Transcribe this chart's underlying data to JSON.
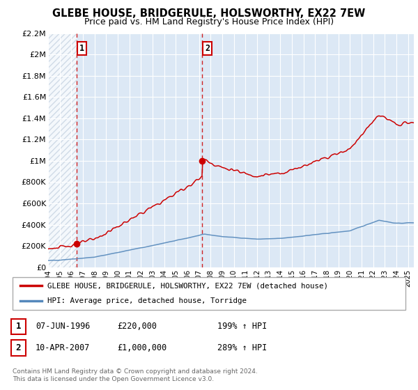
{
  "title": "GLEBE HOUSE, BRIDGERULE, HOLSWORTHY, EX22 7EW",
  "subtitle": "Price paid vs. HM Land Registry's House Price Index (HPI)",
  "hpi_label": "HPI: Average price, detached house, Torridge",
  "house_label": "GLEBE HOUSE, BRIDGERULE, HOLSWORTHY, EX22 7EW (detached house)",
  "house_color": "#cc0000",
  "hpi_color": "#5588bb",
  "bg_color": "#dce8f5",
  "hatch_color": "#c8d8e8",
  "sale1_date": 1996.44,
  "sale1_price": 220000,
  "sale1_label": "1",
  "sale2_date": 2007.27,
  "sale2_price": 1000000,
  "sale2_label": "2",
  "xmin": 1994,
  "xmax": 2025.5,
  "ymin": 0,
  "ymax": 2200000,
  "yticks": [
    0,
    200000,
    400000,
    600000,
    800000,
    1000000,
    1200000,
    1400000,
    1600000,
    1800000,
    2000000,
    2200000
  ],
  "ytick_labels": [
    "£0",
    "£200K",
    "£400K",
    "£600K",
    "£800K",
    "£1M",
    "£1.2M",
    "£1.4M",
    "£1.6M",
    "£1.8M",
    "£2M",
    "£2.2M"
  ],
  "footer1": "Contains HM Land Registry data © Crown copyright and database right 2024.",
  "footer2": "This data is licensed under the Open Government Licence v3.0.",
  "table_row1": [
    "1",
    "07-JUN-1996",
    "£220,000",
    "199% ↑ HPI"
  ],
  "table_row2": [
    "2",
    "10-APR-2007",
    "£1,000,000",
    "289% ↑ HPI"
  ]
}
